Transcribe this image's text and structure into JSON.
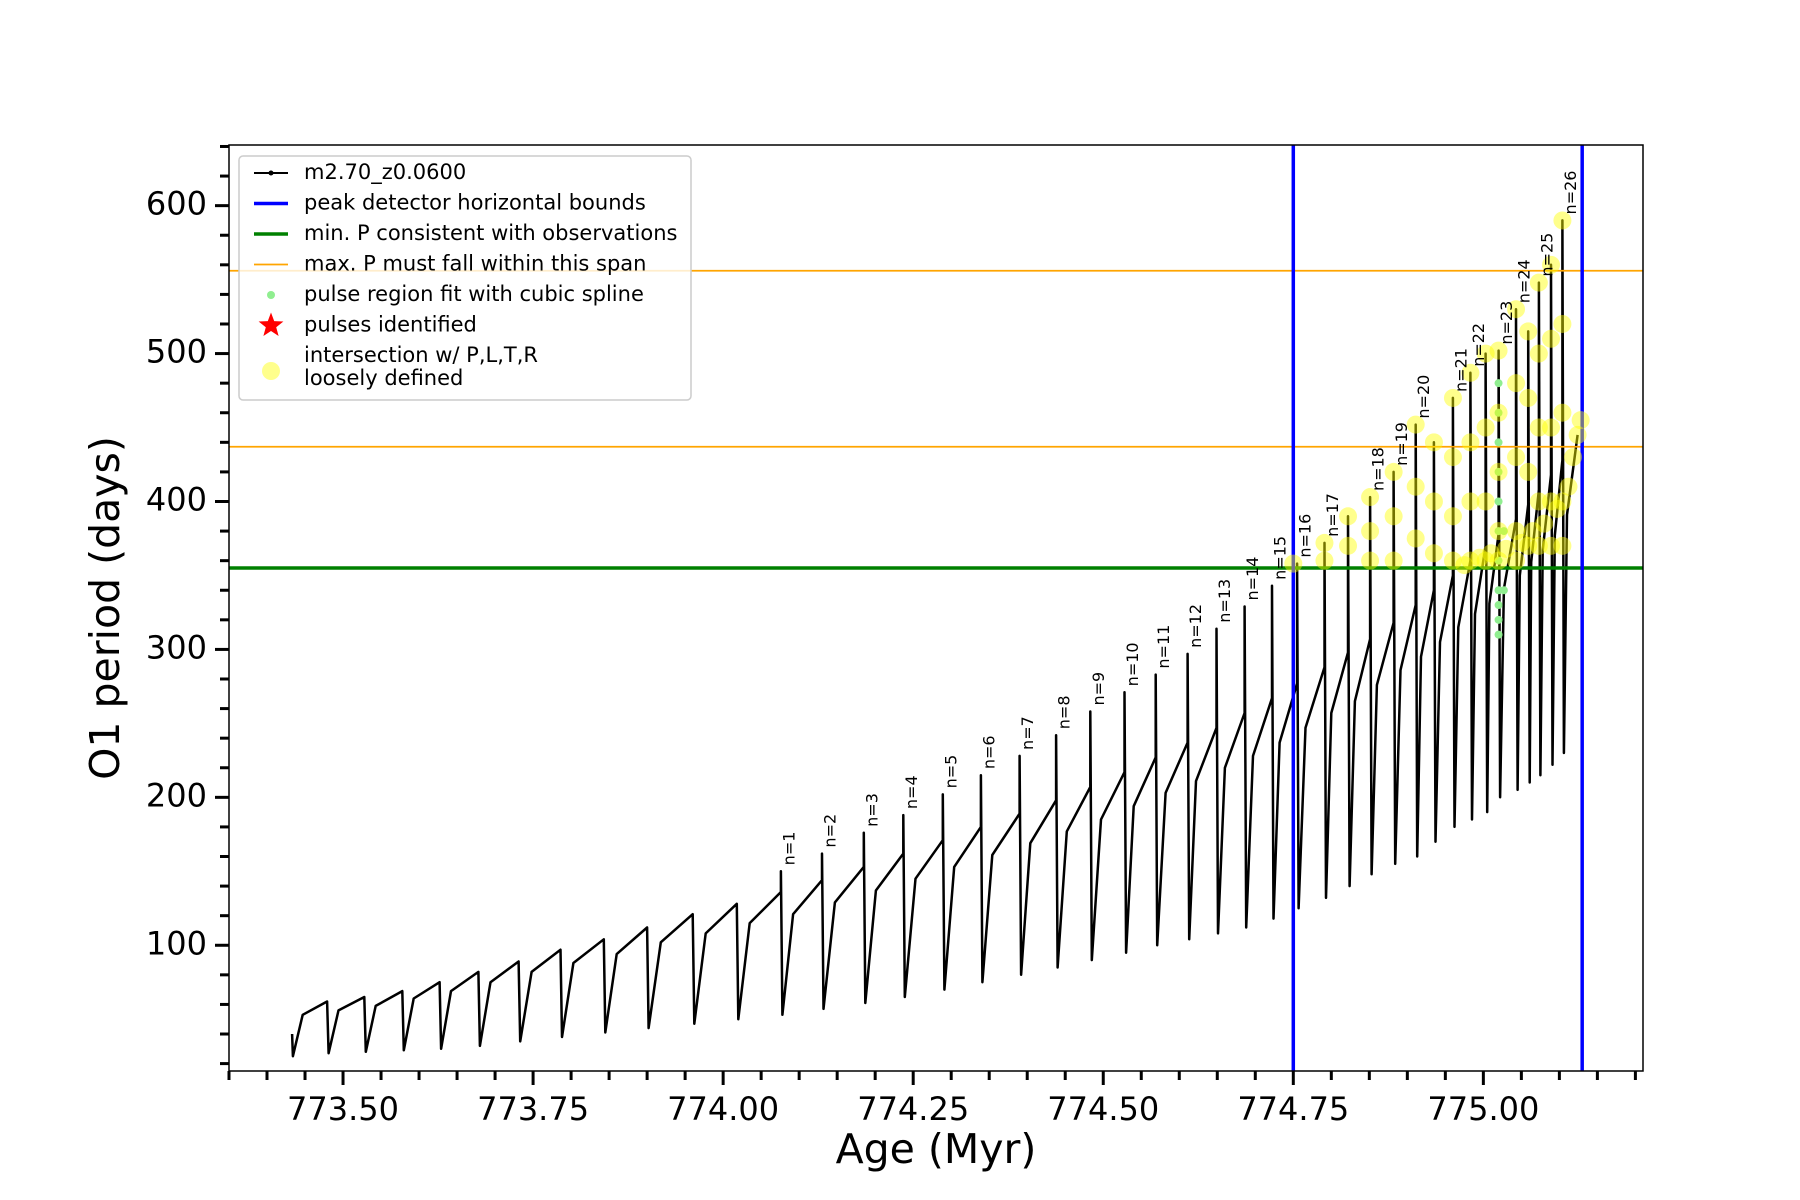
{
  "chart_data": {
    "type": "line",
    "x_label": "Age (Myr)",
    "y_label": "O1 period (days)",
    "xlim": [
      773.35,
      775.21
    ],
    "ylim": [
      15,
      641
    ],
    "xticks": [
      {
        "value": 773.5,
        "label": "773.50"
      },
      {
        "value": 773.75,
        "label": "773.75"
      },
      {
        "value": 774.0,
        "label": "774.00"
      },
      {
        "value": 774.25,
        "label": "774.25"
      },
      {
        "value": 774.5,
        "label": "774.50"
      },
      {
        "value": 774.75,
        "label": "774.75"
      },
      {
        "value": 775.0,
        "label": "775.00"
      }
    ],
    "xticks_minor": [
      773.35,
      773.4,
      773.45,
      773.55,
      773.6,
      773.65,
      773.7,
      773.8,
      773.85,
      773.9,
      773.95,
      774.05,
      774.1,
      774.15,
      774.2,
      774.3,
      774.35,
      774.4,
      774.45,
      774.55,
      774.6,
      774.65,
      774.7,
      774.8,
      774.85,
      774.9,
      774.95,
      775.05,
      775.1,
      775.15,
      775.2
    ],
    "yticks": [
      100,
      200,
      300,
      400,
      500,
      600
    ],
    "yticks_minor": [
      20,
      40,
      60,
      80,
      120,
      140,
      160,
      180,
      220,
      240,
      260,
      280,
      320,
      340,
      360,
      380,
      420,
      440,
      460,
      480,
      520,
      540,
      560,
      580,
      620,
      640
    ],
    "legend": "upper left",
    "series": [
      {
        "name": "m2.70_z0.0600",
        "type": "line",
        "color": "#000000",
        "x": [
          773.433,
          773.434,
          773.447,
          773.479,
          773.481,
          773.494,
          773.528,
          773.53,
          773.543,
          773.578,
          773.58,
          773.593,
          773.627,
          773.629,
          773.642,
          773.678,
          773.68,
          773.694,
          773.731,
          773.733,
          773.748,
          773.786,
          773.788,
          773.803,
          773.843,
          773.845,
          773.86,
          773.9,
          773.902,
          773.918,
          773.96,
          773.962,
          773.977,
          774.018,
          774.02,
          774.035,
          774.076,
          774.076,
          774.078,
          774.092,
          774.13,
          774.13,
          774.132,
          774.147,
          774.185,
          774.185,
          774.187,
          774.201,
          774.237,
          774.237,
          774.239,
          774.253,
          774.289,
          774.289,
          774.291,
          774.304,
          774.339,
          774.339,
          774.341,
          774.354,
          774.39,
          774.39,
          774.392,
          774.404,
          774.438,
          774.438,
          774.44,
          774.452,
          774.483,
          774.483,
          774.485,
          774.497,
          774.528,
          774.528,
          774.53,
          774.54,
          774.569,
          774.569,
          774.571,
          774.582,
          774.611,
          774.611,
          774.613,
          774.622,
          774.649,
          774.649,
          774.651,
          774.66,
          774.686,
          774.686,
          774.688,
          774.697,
          774.722,
          774.722,
          774.724,
          774.732,
          774.755,
          774.755,
          774.757,
          774.766,
          774.791,
          774.791,
          774.793,
          774.8,
          774.822,
          774.822,
          774.824,
          774.831,
          774.851,
          774.851,
          774.853,
          774.86,
          774.882,
          774.882,
          774.884,
          774.891,
          774.911,
          774.911,
          774.913,
          774.918,
          774.935,
          774.935,
          774.937,
          774.943,
          774.96,
          774.96,
          774.962,
          774.967,
          774.983,
          774.983,
          774.985,
          774.989,
          775.003,
          775.003,
          775.005,
          775.008,
          775.02,
          775.02,
          775.022,
          775.027,
          775.043,
          775.043,
          775.045,
          775.048,
          775.059,
          775.059,
          775.061,
          775.063,
          775.073,
          775.073,
          775.075,
          775.078,
          775.089,
          775.089,
          775.091,
          775.094,
          775.104,
          775.104,
          775.106,
          775.11,
          775.124
        ],
        "values": [
          40,
          25,
          53,
          62,
          27,
          56,
          65,
          28,
          59,
          69,
          29,
          64,
          75,
          30,
          69,
          82,
          32,
          75,
          89,
          35,
          82,
          97,
          38,
          88,
          104,
          41,
          94,
          112,
          44,
          102,
          121,
          47,
          108,
          128,
          50,
          115,
          136,
          150,
          53,
          121,
          144,
          162,
          57,
          129,
          153,
          176,
          61,
          137,
          162,
          188,
          65,
          145,
          171,
          202,
          70,
          153,
          180,
          215,
          75,
          161,
          189,
          228,
          80,
          169,
          198,
          242,
          85,
          177,
          207,
          258,
          90,
          185,
          217,
          271,
          95,
          194,
          227,
          283,
          100,
          203,
          237,
          297,
          104,
          211,
          247,
          314,
          108,
          220,
          257,
          329,
          112,
          228,
          267,
          343,
          118,
          237,
          277,
          358,
          125,
          247,
          288,
          372,
          132,
          257,
          298,
          390,
          140,
          265,
          307,
          403,
          148,
          276,
          318,
          420,
          155,
          286,
          330,
          452,
          160,
          295,
          340,
          440,
          170,
          305,
          350,
          470,
          180,
          315,
          360,
          487,
          185,
          324,
          370,
          500,
          190,
          331,
          378,
          502,
          200,
          341,
          388,
          530,
          205,
          350,
          398,
          515,
          210,
          359,
          408,
          548,
          215,
          367,
          418,
          560,
          222,
          377,
          428,
          590,
          230,
          391,
          445
        ]
      },
      {
        "name": "peak detector horizontal bounds",
        "type": "vline",
        "color": "#0000ff",
        "x": [
          774.75,
          775.13
        ]
      },
      {
        "name": "min. P consistent with observations",
        "type": "hline",
        "color": "#008000",
        "values": [
          355
        ]
      },
      {
        "name": "max. P must fall within this span",
        "type": "hline",
        "color": "#ffa500",
        "values": [
          437,
          556
        ]
      },
      {
        "name": "pulse region fit with cubic spline",
        "type": "scatter",
        "marker": "dot",
        "color": "#90ee90",
        "x": [
          775.02,
          775.02,
          775.02,
          775.02,
          775.02,
          775.02,
          775.02,
          775.02,
          775.02,
          775.02,
          775.02,
          775.027,
          775.027
        ],
        "values": [
          310,
          320,
          330,
          340,
          360,
          380,
          400,
          420,
          440,
          460,
          480,
          340,
          380
        ]
      },
      {
        "name": "pulses identified",
        "type": "scatter",
        "marker": "star",
        "color": "#ff0000",
        "x": [],
        "values": []
      },
      {
        "name": [
          "intersection w/ P,L,T,R",
          "loosely defined"
        ],
        "type": "scatter",
        "marker": "blob",
        "color": "#ffff00",
        "x": [
          774.75,
          774.791,
          774.791,
          774.822,
          774.822,
          774.851,
          774.851,
          774.851,
          774.882,
          774.882,
          774.882,
          774.911,
          774.911,
          774.911,
          774.935,
          774.935,
          774.935,
          774.96,
          774.96,
          774.96,
          774.96,
          774.983,
          774.983,
          774.983,
          774.983,
          775.003,
          775.003,
          775.003,
          775.003,
          775.02,
          775.02,
          775.02,
          775.02,
          775.02,
          775.043,
          775.043,
          775.043,
          775.043,
          775.043,
          775.059,
          775.059,
          775.059,
          775.059,
          775.073,
          775.073,
          775.073,
          775.073,
          775.073,
          775.089,
          775.089,
          775.089,
          775.089,
          775.089,
          775.104,
          775.104,
          775.104,
          775.104,
          775.104,
          774.975,
          774.995,
          775.01,
          775.03,
          775.05,
          775.065,
          775.08,
          775.097,
          775.112,
          775.118,
          775.124,
          775.128
        ],
        "values": [
          358,
          372,
          360,
          390,
          370,
          403,
          380,
          360,
          420,
          390,
          360,
          452,
          410,
          375,
          440,
          400,
          365,
          470,
          430,
          390,
          360,
          487,
          440,
          400,
          360,
          500,
          450,
          400,
          360,
          502,
          460,
          420,
          380,
          360,
          530,
          480,
          430,
          380,
          360,
          515,
          470,
          420,
          370,
          548,
          500,
          450,
          400,
          370,
          560,
          510,
          450,
          400,
          370,
          590,
          520,
          460,
          400,
          370,
          357,
          362,
          365,
          368,
          372,
          380,
          385,
          395,
          410,
          430,
          445,
          455
        ]
      }
    ],
    "annotations": [
      {
        "text": "n=1",
        "x": 774.076,
        "y": 150
      },
      {
        "text": "n=2",
        "x": 774.13,
        "y": 162
      },
      {
        "text": "n=3",
        "x": 774.185,
        "y": 176
      },
      {
        "text": "n=4",
        "x": 774.237,
        "y": 188
      },
      {
        "text": "n=5",
        "x": 774.289,
        "y": 202
      },
      {
        "text": "n=6",
        "x": 774.339,
        "y": 215
      },
      {
        "text": "n=7",
        "x": 774.39,
        "y": 228
      },
      {
        "text": "n=8",
        "x": 774.438,
        "y": 242
      },
      {
        "text": "n=9",
        "x": 774.483,
        "y": 258
      },
      {
        "text": "n=10",
        "x": 774.528,
        "y": 271
      },
      {
        "text": "n=11",
        "x": 774.569,
        "y": 283
      },
      {
        "text": "n=12",
        "x": 774.611,
        "y": 297
      },
      {
        "text": "n=13",
        "x": 774.649,
        "y": 314
      },
      {
        "text": "n=14",
        "x": 774.686,
        "y": 329
      },
      {
        "text": "n=15",
        "x": 774.722,
        "y": 343
      },
      {
        "text": "n=16",
        "x": 774.755,
        "y": 358
      },
      {
        "text": "n=17",
        "x": 774.791,
        "y": 372
      },
      {
        "text": "n=18",
        "x": 774.851,
        "y": 403
      },
      {
        "text": "n=19",
        "x": 774.882,
        "y": 420
      },
      {
        "text": "n=20",
        "x": 774.911,
        "y": 452
      },
      {
        "text": "n=21",
        "x": 774.96,
        "y": 470
      },
      {
        "text": "n=22",
        "x": 774.983,
        "y": 487
      },
      {
        "text": "n=23",
        "x": 775.02,
        "y": 502
      },
      {
        "text": "n=24",
        "x": 775.043,
        "y": 530
      },
      {
        "text": "n=25",
        "x": 775.073,
        "y": 548
      },
      {
        "text": "n=26",
        "x": 775.104,
        "y": 590
      }
    ]
  }
}
